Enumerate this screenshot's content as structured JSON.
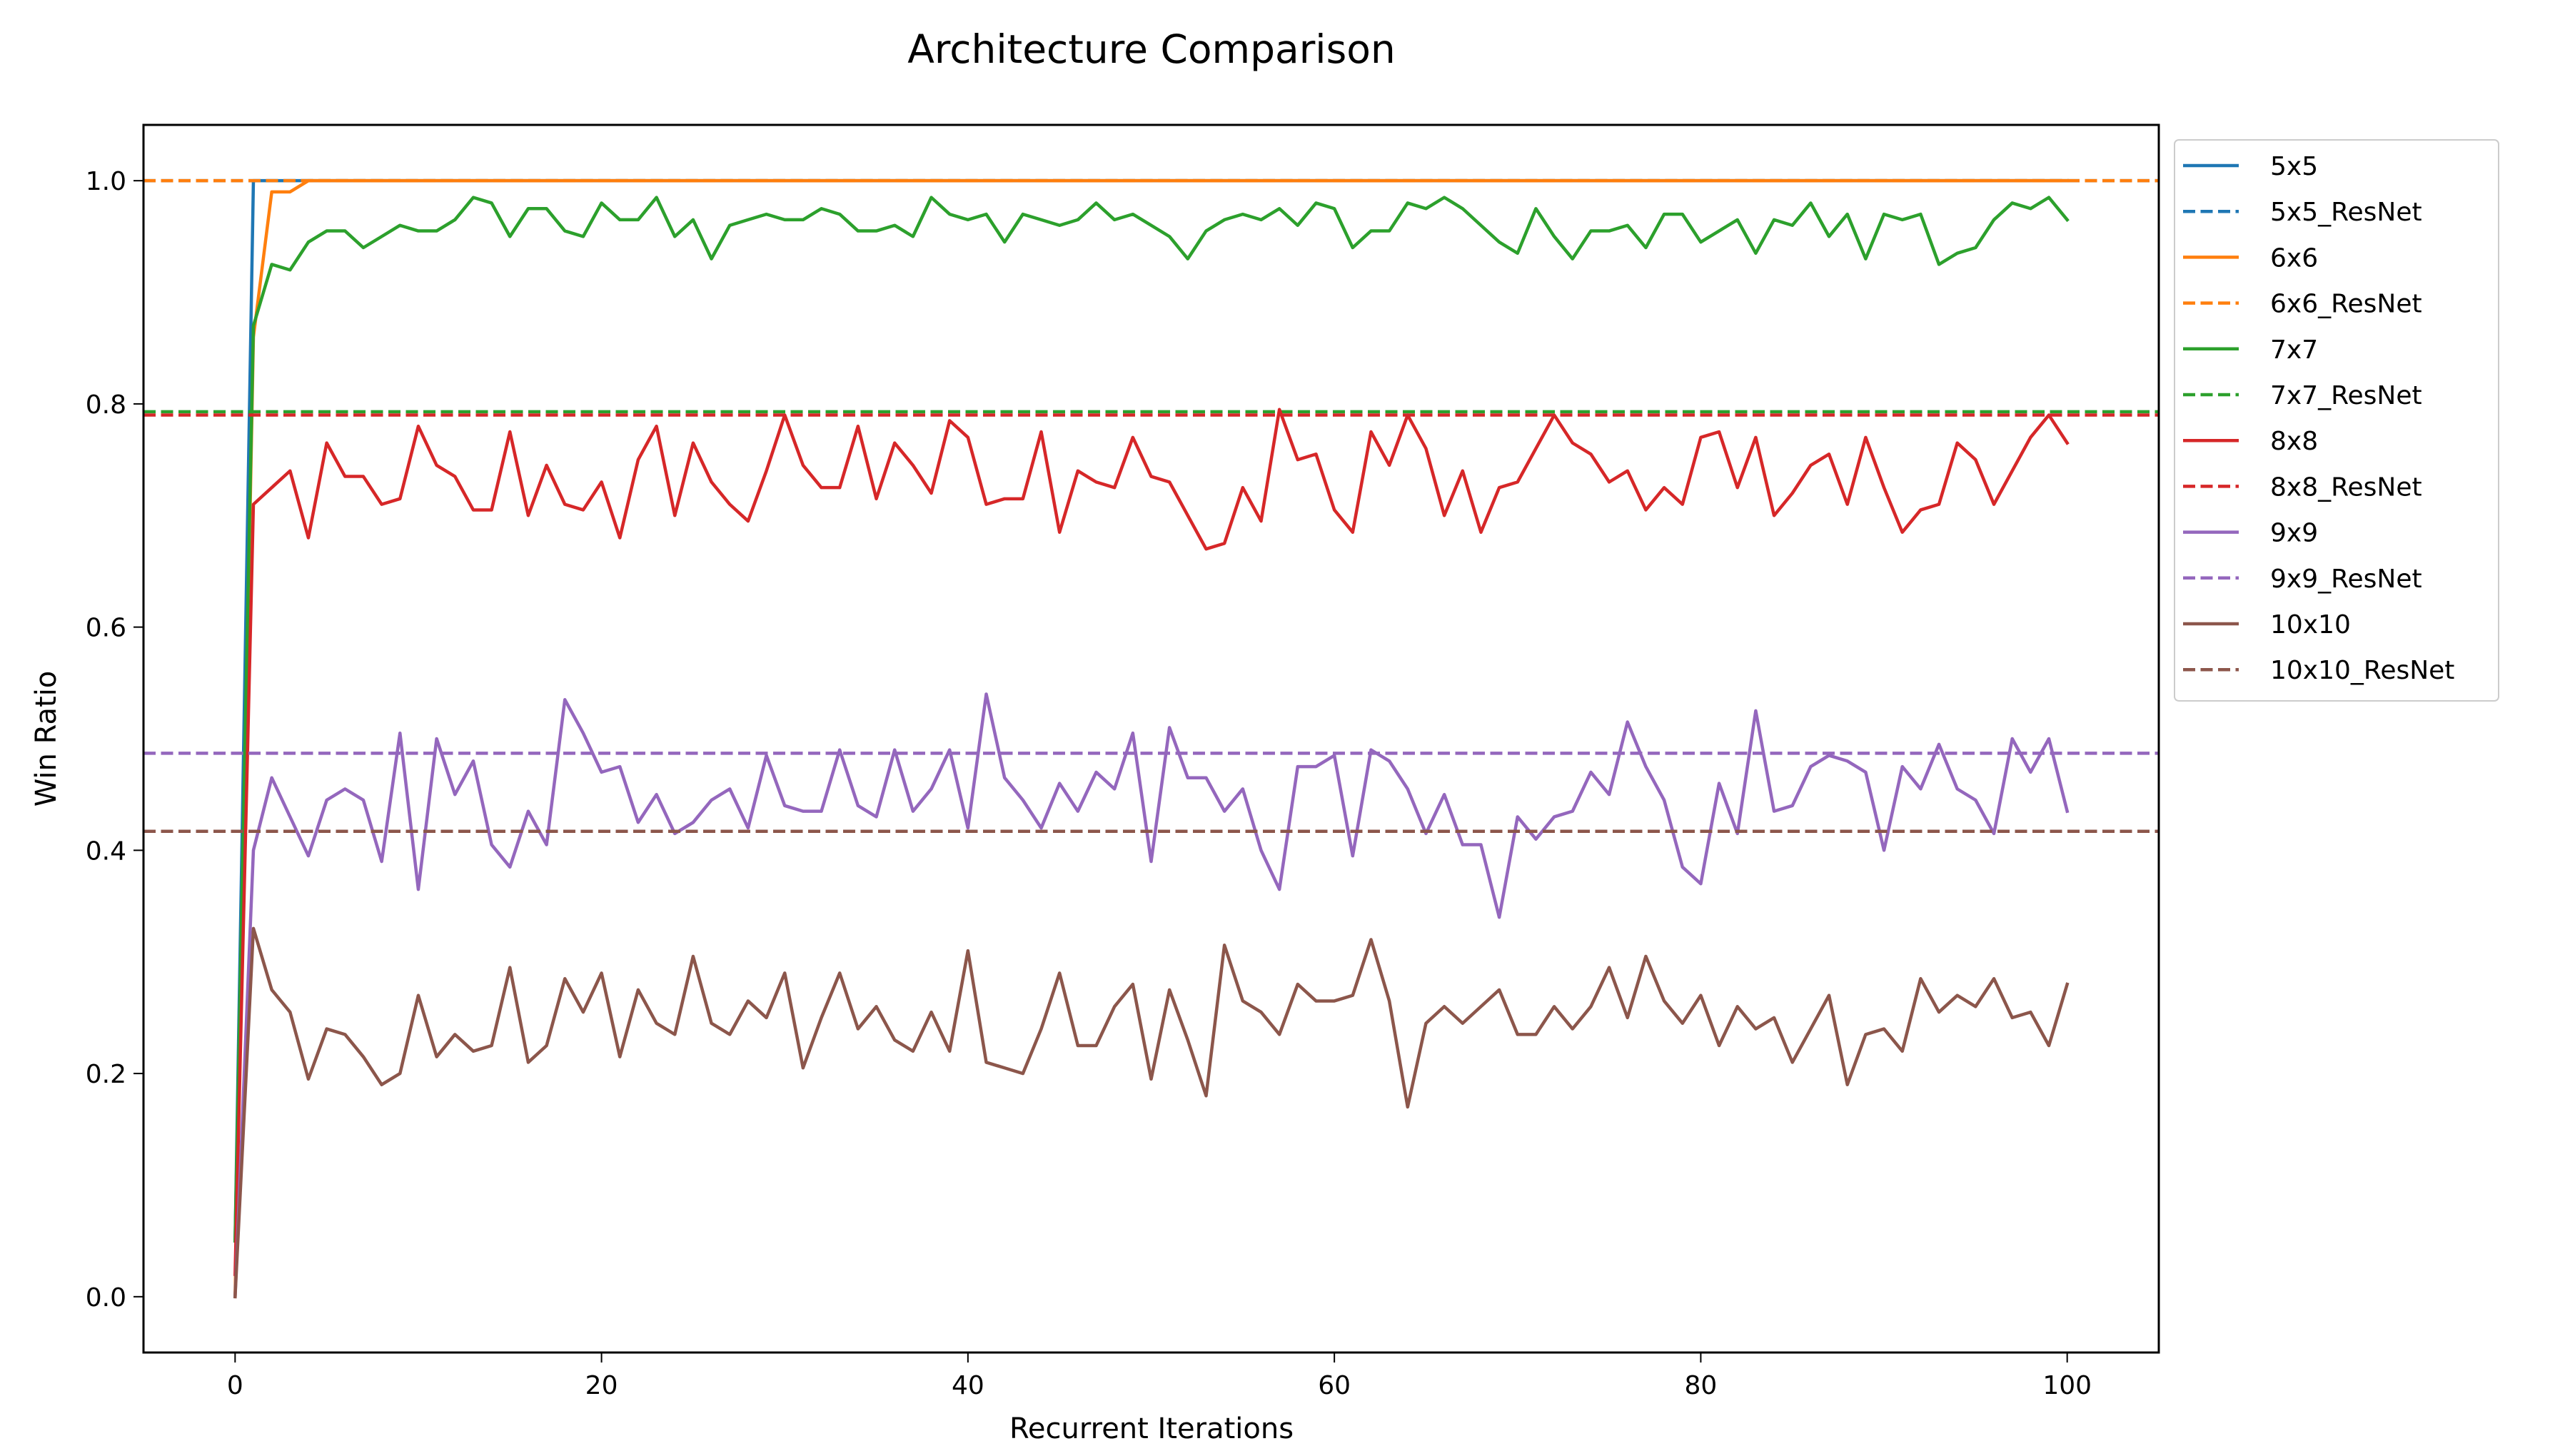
{
  "chart_data": {
    "type": "line",
    "title": "Architecture Comparison",
    "xlabel": "Recurrent Iterations",
    "ylabel": "Win Ratio",
    "xlim": [
      -5,
      105
    ],
    "ylim": [
      -0.05,
      1.05
    ],
    "xticks": [
      0,
      20,
      40,
      60,
      80,
      100
    ],
    "yticks": [
      0.0,
      0.2,
      0.4,
      0.6,
      0.8,
      1.0
    ],
    "grid": false,
    "legend_position": "outside-top-right",
    "series": [
      {
        "name": "5x5",
        "style": "solid",
        "color": "#1f77b4",
        "x": [
          0,
          1,
          2,
          3,
          100
        ],
        "y": [
          0.05,
          1.0,
          1.0,
          1.0,
          1.0
        ]
      },
      {
        "name": "5x5_ResNet",
        "style": "dashed",
        "color": "#1f77b4",
        "x": [
          -5,
          105
        ],
        "y": [
          1.0,
          1.0
        ]
      },
      {
        "name": "6x6",
        "style": "solid",
        "color": "#ff7f0e",
        "x": [
          0,
          1,
          2,
          3,
          4,
          5,
          100
        ],
        "y": [
          0.0,
          0.86,
          0.99,
          0.99,
          1.0,
          1.0,
          1.0
        ]
      },
      {
        "name": "6x6_ResNet",
        "style": "dashed",
        "color": "#ff7f0e",
        "x": [
          -5,
          105
        ],
        "y": [
          1.0,
          1.0
        ]
      },
      {
        "name": "7x7",
        "style": "solid",
        "color": "#2ca02c",
        "x": [
          0,
          1,
          2,
          3,
          4,
          5,
          6,
          7,
          8,
          9,
          10,
          11,
          12,
          13,
          14,
          15,
          16,
          17,
          18,
          19,
          20,
          21,
          22,
          23,
          24,
          25,
          26,
          27,
          28,
          29,
          30,
          31,
          32,
          33,
          34,
          35,
          36,
          37,
          38,
          39,
          40,
          41,
          42,
          43,
          44,
          45,
          46,
          47,
          48,
          49,
          50,
          51,
          52,
          53,
          54,
          55,
          56,
          57,
          58,
          59,
          60,
          61,
          62,
          63,
          64,
          65,
          66,
          67,
          68,
          69,
          70,
          71,
          72,
          73,
          74,
          75,
          76,
          77,
          78,
          79,
          80,
          81,
          82,
          83,
          84,
          85,
          86,
          87,
          88,
          89,
          90,
          91,
          92,
          93,
          94,
          95,
          96,
          97,
          98,
          99,
          100
        ],
        "y": [
          0.05,
          0.87,
          0.925,
          0.92,
          0.945,
          0.955,
          0.955,
          0.94,
          0.95,
          0.96,
          0.955,
          0.955,
          0.965,
          0.985,
          0.98,
          0.95,
          0.975,
          0.975,
          0.955,
          0.95,
          0.98,
          0.965,
          0.965,
          0.985,
          0.95,
          0.965,
          0.93,
          0.96,
          0.965,
          0.97,
          0.965,
          0.965,
          0.975,
          0.97,
          0.955,
          0.955,
          0.96,
          0.95,
          0.985,
          0.97,
          0.965,
          0.97,
          0.945,
          0.97,
          0.965,
          0.96,
          0.965,
          0.98,
          0.965,
          0.97,
          0.96,
          0.95,
          0.93,
          0.955,
          0.965,
          0.97,
          0.965,
          0.975,
          0.96,
          0.98,
          0.975,
          0.94,
          0.955,
          0.955,
          0.98,
          0.975,
          0.985,
          0.975,
          0.96,
          0.945,
          0.935,
          0.975,
          0.95,
          0.93,
          0.955,
          0.955,
          0.96,
          0.94,
          0.97,
          0.97,
          0.945,
          0.955,
          0.965,
          0.935,
          0.965,
          0.96,
          0.98,
          0.95,
          0.97,
          0.93,
          0.97,
          0.965,
          0.97,
          0.925,
          0.935,
          0.94,
          0.965,
          0.98,
          0.975,
          0.985,
          0.965
        ]
      },
      {
        "name": "7x7_ResNet",
        "style": "dashed",
        "color": "#2ca02c",
        "x": [
          -5,
          105
        ],
        "y": [
          0.793,
          0.793
        ]
      },
      {
        "name": "8x8",
        "style": "solid",
        "color": "#d62728",
        "x": [
          0,
          1,
          2,
          3,
          4,
          5,
          6,
          7,
          8,
          9,
          10,
          11,
          12,
          13,
          14,
          15,
          16,
          17,
          18,
          19,
          20,
          21,
          22,
          23,
          24,
          25,
          26,
          27,
          28,
          29,
          30,
          31,
          32,
          33,
          34,
          35,
          36,
          37,
          38,
          39,
          40,
          41,
          42,
          43,
          44,
          45,
          46,
          47,
          48,
          49,
          50,
          51,
          52,
          53,
          54,
          55,
          56,
          57,
          58,
          59,
          60,
          61,
          62,
          63,
          64,
          65,
          66,
          67,
          68,
          69,
          70,
          71,
          72,
          73,
          74,
          75,
          76,
          77,
          78,
          79,
          80,
          81,
          82,
          83,
          84,
          85,
          86,
          87,
          88,
          89,
          90,
          91,
          92,
          93,
          94,
          95,
          96,
          97,
          98,
          99,
          100
        ],
        "y": [
          0.02,
          0.71,
          0.725,
          0.74,
          0.68,
          0.765,
          0.735,
          0.735,
          0.71,
          0.715,
          0.78,
          0.745,
          0.735,
          0.705,
          0.705,
          0.775,
          0.7,
          0.745,
          0.71,
          0.705,
          0.73,
          0.68,
          0.75,
          0.78,
          0.7,
          0.765,
          0.73,
          0.71,
          0.695,
          0.74,
          0.79,
          0.745,
          0.725,
          0.725,
          0.78,
          0.715,
          0.765,
          0.745,
          0.72,
          0.785,
          0.77,
          0.71,
          0.715,
          0.715,
          0.775,
          0.685,
          0.74,
          0.73,
          0.725,
          0.77,
          0.735,
          0.73,
          0.7,
          0.67,
          0.675,
          0.725,
          0.695,
          0.795,
          0.75,
          0.755,
          0.705,
          0.685,
          0.775,
          0.745,
          0.79,
          0.76,
          0.7,
          0.74,
          0.685,
          0.725,
          0.73,
          0.76,
          0.79,
          0.765,
          0.755,
          0.73,
          0.74,
          0.705,
          0.725,
          0.71,
          0.77,
          0.775,
          0.725,
          0.77,
          0.7,
          0.72,
          0.745,
          0.755,
          0.71,
          0.77,
          0.725,
          0.685,
          0.705,
          0.71,
          0.765,
          0.75,
          0.71,
          0.74,
          0.77,
          0.79,
          0.765
        ]
      },
      {
        "name": "8x8_ResNet",
        "style": "dashed",
        "color": "#d62728",
        "x": [
          -5,
          105
        ],
        "y": [
          0.79,
          0.79
        ]
      },
      {
        "name": "9x9",
        "style": "solid",
        "color": "#9467bd",
        "x": [
          0,
          1,
          2,
          3,
          4,
          5,
          6,
          7,
          8,
          9,
          10,
          11,
          12,
          13,
          14,
          15,
          16,
          17,
          18,
          19,
          20,
          21,
          22,
          23,
          24,
          25,
          26,
          27,
          28,
          29,
          30,
          31,
          32,
          33,
          34,
          35,
          36,
          37,
          38,
          39,
          40,
          41,
          42,
          43,
          44,
          45,
          46,
          47,
          48,
          49,
          50,
          51,
          52,
          53,
          54,
          55,
          56,
          57,
          58,
          59,
          60,
          61,
          62,
          63,
          64,
          65,
          66,
          67,
          68,
          69,
          70,
          71,
          72,
          73,
          74,
          75,
          76,
          77,
          78,
          79,
          80,
          81,
          82,
          83,
          84,
          85,
          86,
          87,
          88,
          89,
          90,
          91,
          92,
          93,
          94,
          95,
          96,
          97,
          98,
          99,
          100
        ],
        "y": [
          0.0,
          0.4,
          0.465,
          0.43,
          0.395,
          0.445,
          0.455,
          0.445,
          0.39,
          0.505,
          0.365,
          0.5,
          0.45,
          0.48,
          0.405,
          0.385,
          0.435,
          0.405,
          0.535,
          0.505,
          0.47,
          0.475,
          0.425,
          0.45,
          0.415,
          0.425,
          0.445,
          0.455,
          0.42,
          0.485,
          0.44,
          0.435,
          0.435,
          0.49,
          0.44,
          0.43,
          0.49,
          0.435,
          0.455,
          0.49,
          0.42,
          0.54,
          0.465,
          0.445,
          0.42,
          0.46,
          0.435,
          0.47,
          0.455,
          0.505,
          0.39,
          0.51,
          0.465,
          0.465,
          0.435,
          0.455,
          0.4,
          0.365,
          0.475,
          0.475,
          0.485,
          0.395,
          0.49,
          0.48,
          0.455,
          0.415,
          0.45,
          0.405,
          0.405,
          0.34,
          0.43,
          0.41,
          0.43,
          0.435,
          0.47,
          0.45,
          0.515,
          0.475,
          0.445,
          0.385,
          0.37,
          0.46,
          0.415,
          0.525,
          0.435,
          0.44,
          0.475,
          0.485,
          0.48,
          0.47,
          0.4,
          0.475,
          0.455,
          0.495,
          0.455,
          0.445,
          0.415,
          0.5,
          0.47,
          0.5,
          0.435
        ]
      },
      {
        "name": "9x9_ResNet",
        "style": "dashed",
        "color": "#9467bd",
        "x": [
          -5,
          105
        ],
        "y": [
          0.487,
          0.487
        ]
      },
      {
        "name": "10x10",
        "style": "solid",
        "color": "#8c564b",
        "x": [
          0,
          1,
          2,
          3,
          4,
          5,
          6,
          7,
          8,
          9,
          10,
          11,
          12,
          13,
          14,
          15,
          16,
          17,
          18,
          19,
          20,
          21,
          22,
          23,
          24,
          25,
          26,
          27,
          28,
          29,
          30,
          31,
          32,
          33,
          34,
          35,
          36,
          37,
          38,
          39,
          40,
          41,
          42,
          43,
          44,
          45,
          46,
          47,
          48,
          49,
          50,
          51,
          52,
          53,
          54,
          55,
          56,
          57,
          58,
          59,
          60,
          61,
          62,
          63,
          64,
          65,
          66,
          67,
          68,
          69,
          70,
          71,
          72,
          73,
          74,
          75,
          76,
          77,
          78,
          79,
          80,
          81,
          82,
          83,
          84,
          85,
          86,
          87,
          88,
          89,
          90,
          91,
          92,
          93,
          94,
          95,
          96,
          97,
          98,
          99,
          100
        ],
        "y": [
          0.0,
          0.33,
          0.275,
          0.255,
          0.195,
          0.24,
          0.235,
          0.215,
          0.19,
          0.2,
          0.27,
          0.215,
          0.235,
          0.22,
          0.225,
          0.295,
          0.21,
          0.225,
          0.285,
          0.255,
          0.29,
          0.215,
          0.275,
          0.245,
          0.235,
          0.305,
          0.245,
          0.235,
          0.265,
          0.25,
          0.29,
          0.205,
          0.25,
          0.29,
          0.24,
          0.26,
          0.23,
          0.22,
          0.255,
          0.22,
          0.31,
          0.21,
          0.205,
          0.2,
          0.24,
          0.29,
          0.225,
          0.225,
          0.26,
          0.28,
          0.195,
          0.275,
          0.23,
          0.18,
          0.315,
          0.265,
          0.255,
          0.235,
          0.28,
          0.265,
          0.265,
          0.27,
          0.32,
          0.265,
          0.17,
          0.245,
          0.26,
          0.245,
          0.26,
          0.275,
          0.235,
          0.235,
          0.26,
          0.24,
          0.26,
          0.295,
          0.25,
          0.305,
          0.265,
          0.245,
          0.27,
          0.225,
          0.26,
          0.24,
          0.25,
          0.21,
          0.24,
          0.27,
          0.19,
          0.235,
          0.24,
          0.22,
          0.285,
          0.255,
          0.27,
          0.26,
          0.285,
          0.25,
          0.255,
          0.225,
          0.28
        ]
      },
      {
        "name": "10x10_ResNet",
        "style": "dashed",
        "color": "#8c564b",
        "x": [
          -5,
          105
        ],
        "y": [
          0.417,
          0.417
        ]
      }
    ]
  }
}
